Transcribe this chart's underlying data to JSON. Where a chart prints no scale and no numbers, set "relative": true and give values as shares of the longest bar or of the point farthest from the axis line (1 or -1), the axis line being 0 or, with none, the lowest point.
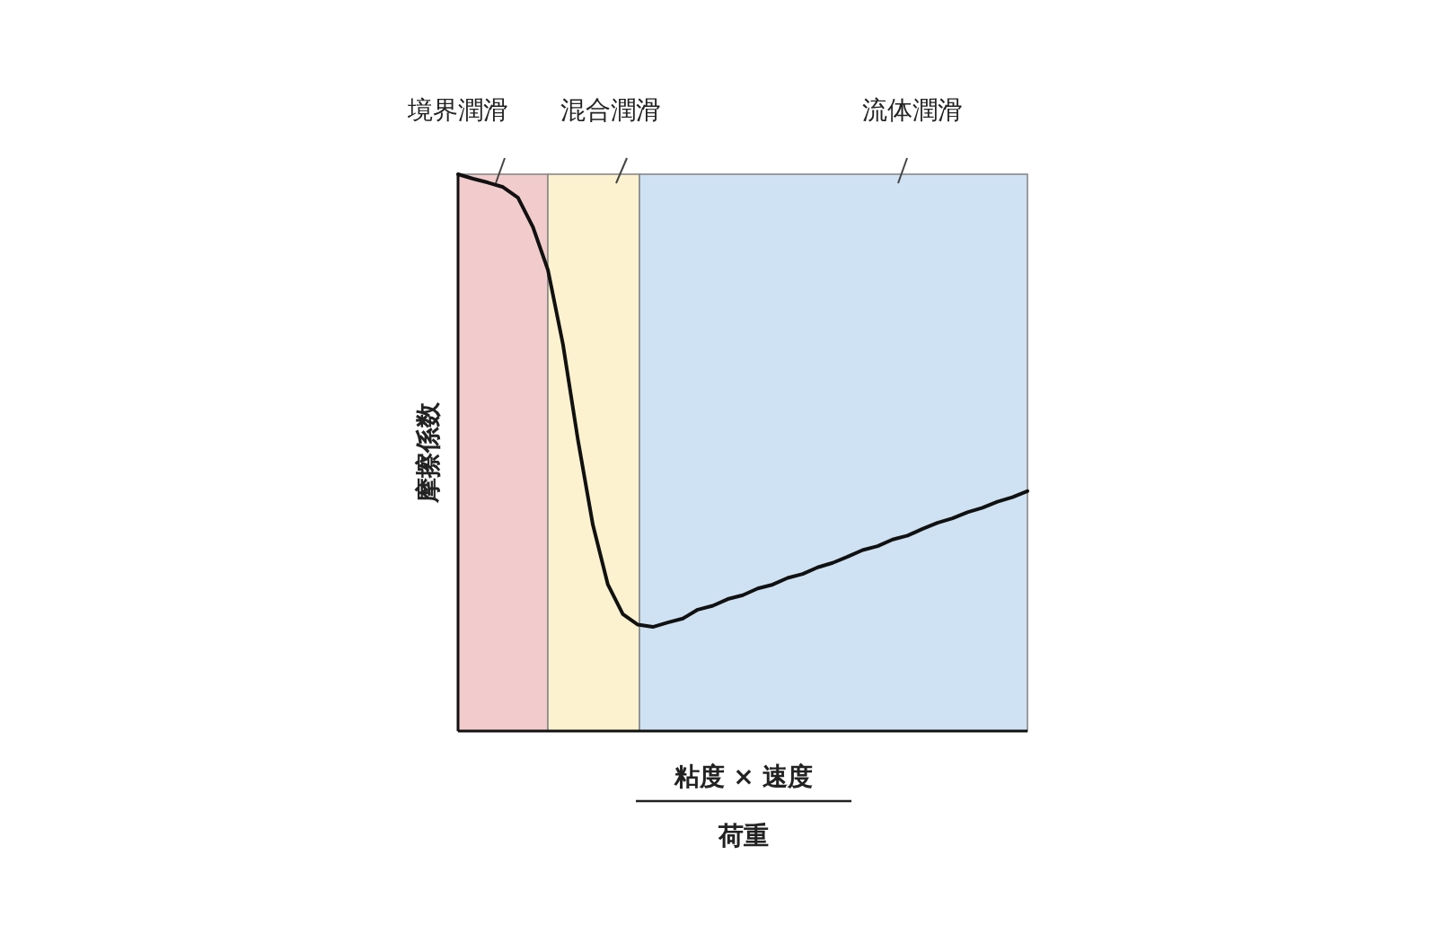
{
  "chart_data": {
    "type": "line",
    "relative": true,
    "xlabel": "粘度 × 速度",
    "ylabel": "摩擦係数",
    "color": "#111111",
    "annotations": [
      "荷重",
      "境界潤滑",
      "混合潤滑",
      "流体潤滑"
    ],
    "categories": [
      null,
      null,
      null,
      null,
      null,
      null,
      null,
      null,
      null,
      null,
      null,
      null,
      null,
      null,
      null,
      null,
      null,
      null,
      null,
      null,
      null,
      null,
      null,
      null,
      null,
      null,
      null,
      null,
      null,
      null,
      null,
      null,
      null,
      null,
      null,
      null,
      null,
      null,
      null
    ],
    "values": [
      1.0,
      0.992,
      0.985,
      0.977,
      0.958,
      0.905,
      0.828,
      0.695,
      0.523,
      0.37,
      0.263,
      0.21,
      0.191,
      0.187,
      0.195,
      0.202,
      0.218,
      0.225,
      0.237,
      0.244,
      0.256,
      0.263,
      0.275,
      0.282,
      0.294,
      0.302,
      0.313,
      0.325,
      0.332,
      0.344,
      0.351,
      0.363,
      0.374,
      0.382,
      0.393,
      0.401,
      0.412,
      0.42,
      0.431
    ]
  }
}
